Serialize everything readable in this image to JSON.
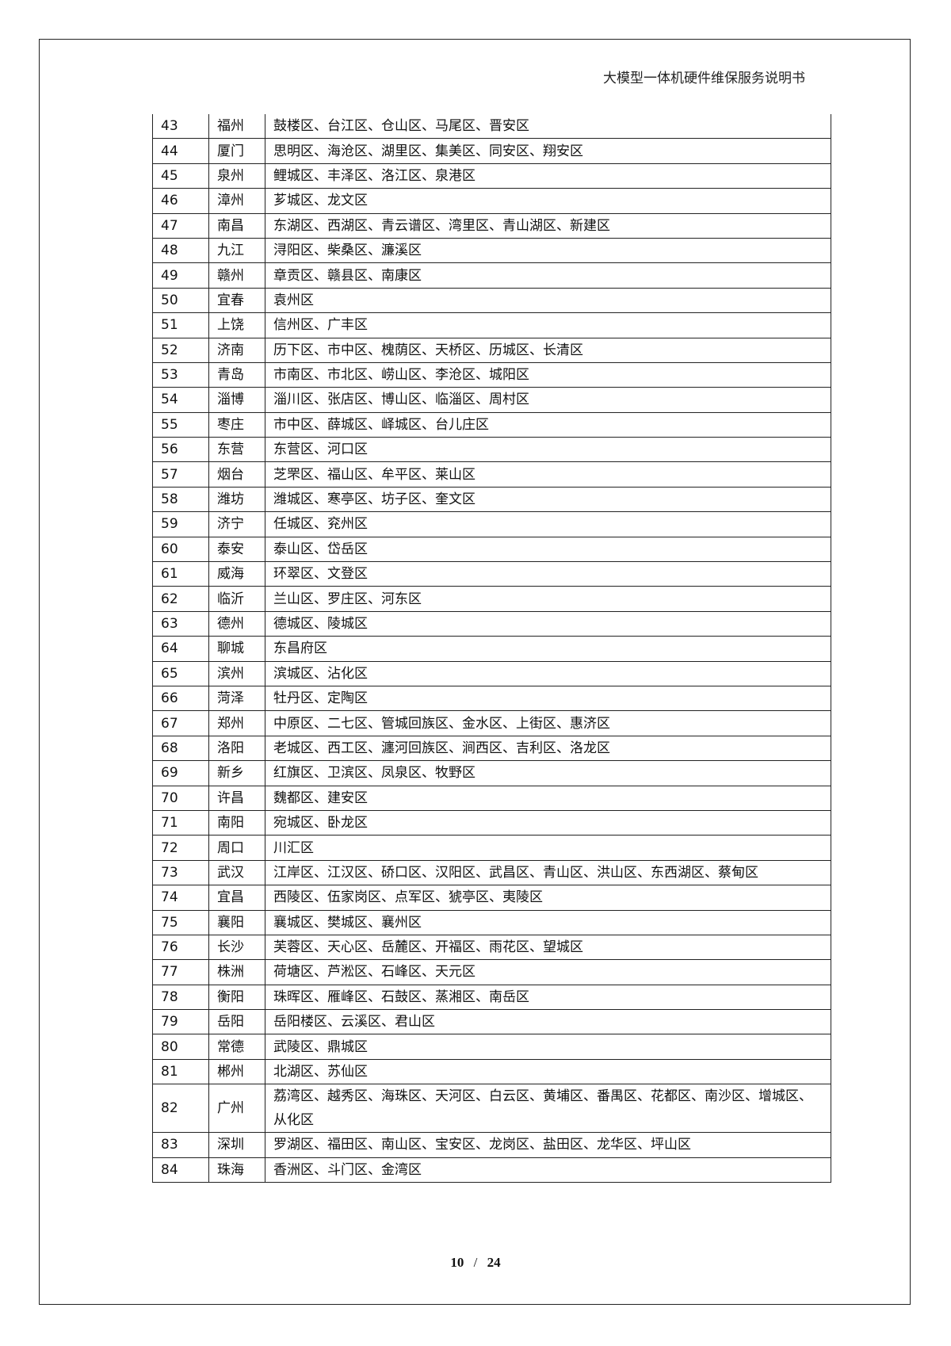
{
  "header": {
    "title": "大模型一体机硬件维保服务说明书"
  },
  "table": {
    "rows": [
      {
        "no": "43",
        "city": "福州",
        "districts": "鼓楼区、台江区、仓山区、马尾区、晋安区"
      },
      {
        "no": "44",
        "city": "厦门",
        "districts": "思明区、海沧区、湖里区、集美区、同安区、翔安区"
      },
      {
        "no": "45",
        "city": "泉州",
        "districts": "鲤城区、丰泽区、洛江区、泉港区"
      },
      {
        "no": "46",
        "city": "漳州",
        "districts": "芗城区、龙文区"
      },
      {
        "no": "47",
        "city": "南昌",
        "districts": "东湖区、西湖区、青云谱区、湾里区、青山湖区、新建区"
      },
      {
        "no": "48",
        "city": "九江",
        "districts": "浔阳区、柴桑区、濂溪区"
      },
      {
        "no": "49",
        "city": "赣州",
        "districts": "章贡区、赣县区、南康区"
      },
      {
        "no": "50",
        "city": "宜春",
        "districts": "袁州区"
      },
      {
        "no": "51",
        "city": "上饶",
        "districts": "信州区、广丰区"
      },
      {
        "no": "52",
        "city": "济南",
        "districts": "历下区、市中区、槐荫区、天桥区、历城区、长清区"
      },
      {
        "no": "53",
        "city": "青岛",
        "districts": "市南区、市北区、崂山区、李沧区、城阳区"
      },
      {
        "no": "54",
        "city": "淄博",
        "districts": "淄川区、张店区、博山区、临淄区、周村区"
      },
      {
        "no": "55",
        "city": "枣庄",
        "districts": "市中区、薛城区、峄城区、台儿庄区"
      },
      {
        "no": "56",
        "city": "东营",
        "districts": "东营区、河口区"
      },
      {
        "no": "57",
        "city": "烟台",
        "districts": "芝罘区、福山区、牟平区、莱山区"
      },
      {
        "no": "58",
        "city": "潍坊",
        "districts": "潍城区、寒亭区、坊子区、奎文区"
      },
      {
        "no": "59",
        "city": "济宁",
        "districts": "任城区、兖州区"
      },
      {
        "no": "60",
        "city": "泰安",
        "districts": "泰山区、岱岳区"
      },
      {
        "no": "61",
        "city": "威海",
        "districts": "环翠区、文登区"
      },
      {
        "no": "62",
        "city": "临沂",
        "districts": "兰山区、罗庄区、河东区"
      },
      {
        "no": "63",
        "city": "德州",
        "districts": "德城区、陵城区"
      },
      {
        "no": "64",
        "city": "聊城",
        "districts": "东昌府区"
      },
      {
        "no": "65",
        "city": "滨州",
        "districts": "滨城区、沾化区"
      },
      {
        "no": "66",
        "city": "菏泽",
        "districts": "牡丹区、定陶区"
      },
      {
        "no": "67",
        "city": "郑州",
        "districts": "中原区、二七区、管城回族区、金水区、上街区、惠济区"
      },
      {
        "no": "68",
        "city": "洛阳",
        "districts": "老城区、西工区、瀍河回族区、涧西区、吉利区、洛龙区"
      },
      {
        "no": "69",
        "city": "新乡",
        "districts": "红旗区、卫滨区、凤泉区、牧野区"
      },
      {
        "no": "70",
        "city": "许昌",
        "districts": "魏都区、建安区"
      },
      {
        "no": "71",
        "city": "南阳",
        "districts": "宛城区、卧龙区"
      },
      {
        "no": "72",
        "city": "周口",
        "districts": "川汇区"
      },
      {
        "no": "73",
        "city": "武汉",
        "districts": "江岸区、江汉区、硚口区、汉阳区、武昌区、青山区、洪山区、东西湖区、蔡甸区"
      },
      {
        "no": "74",
        "city": "宜昌",
        "districts": "西陵区、伍家岗区、点军区、猇亭区、夷陵区"
      },
      {
        "no": "75",
        "city": "襄阳",
        "districts": "襄城区、樊城区、襄州区"
      },
      {
        "no": "76",
        "city": "长沙",
        "districts": "芙蓉区、天心区、岳麓区、开福区、雨花区、望城区"
      },
      {
        "no": "77",
        "city": "株洲",
        "districts": "荷塘区、芦淞区、石峰区、天元区"
      },
      {
        "no": "78",
        "city": "衡阳",
        "districts": "珠晖区、雁峰区、石鼓区、蒸湘区、南岳区"
      },
      {
        "no": "79",
        "city": "岳阳",
        "districts": "岳阳楼区、云溪区、君山区"
      },
      {
        "no": "80",
        "city": "常德",
        "districts": "武陵区、鼎城区"
      },
      {
        "no": "81",
        "city": "郴州",
        "districts": "北湖区、苏仙区"
      },
      {
        "no": "82",
        "city": "广州",
        "districts": "荔湾区、越秀区、海珠区、天河区、白云区、黄埔区、番禺区、花都区、南沙区、增城区、从化区"
      },
      {
        "no": "83",
        "city": "深圳",
        "districts": "罗湖区、福田区、南山区、宝安区、龙岗区、盐田区、龙华区、坪山区"
      },
      {
        "no": "84",
        "city": "珠海",
        "districts": "香洲区、斗门区、金湾区"
      }
    ]
  },
  "footer": {
    "page": "10",
    "separator": "/",
    "total": "24"
  }
}
